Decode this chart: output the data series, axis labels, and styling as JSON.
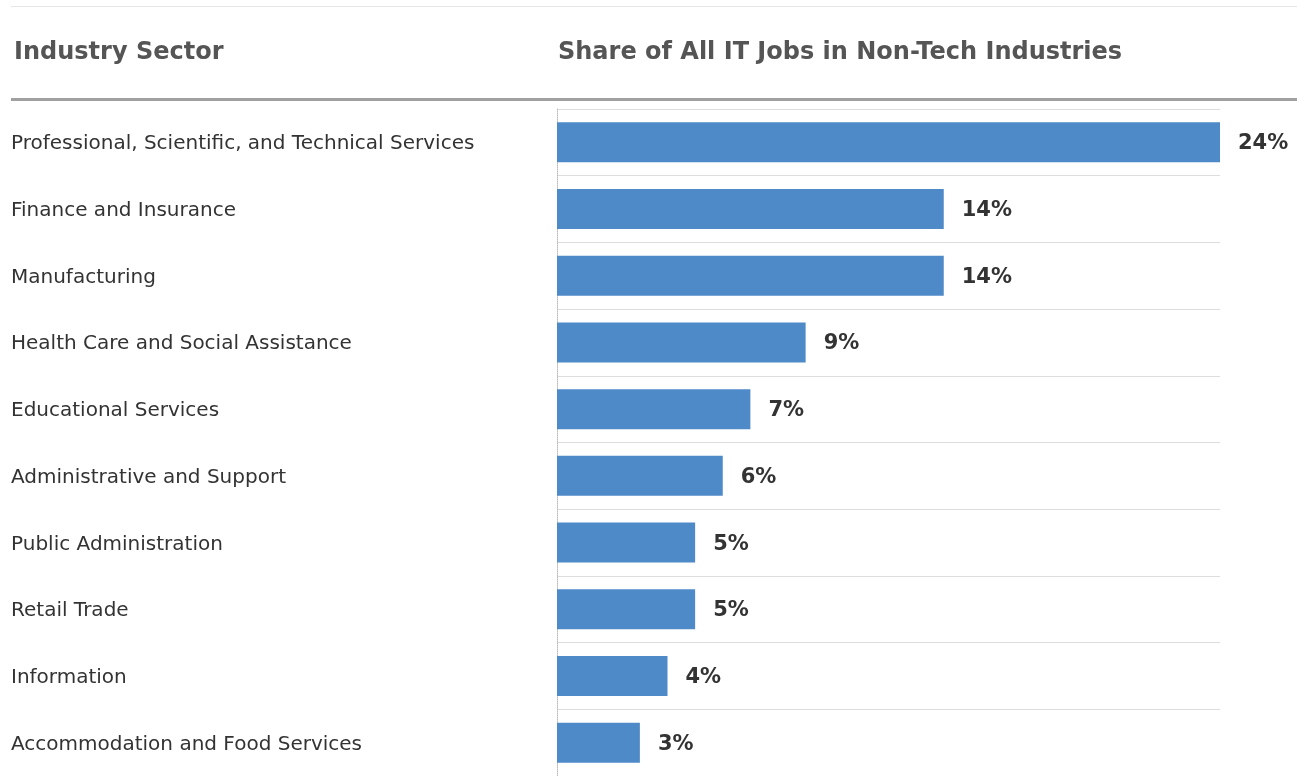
{
  "chart_data": {
    "type": "bar",
    "orientation": "horizontal",
    "ylabel": "Industry Sector",
    "xlabel": "Share of All IT Jobs in Non-Tech Industries",
    "categories": [
      "Professional, Scientific, and Technical Services",
      "Finance and Insurance",
      "Manufacturing",
      "Health Care and Social Assistance",
      "Educational Services",
      "Administrative and Support",
      "Public Administration",
      "Retail Trade",
      "Information",
      "Accommodation and Food Services"
    ],
    "values": [
      24,
      14,
      14,
      9,
      7,
      6,
      5,
      5,
      4,
      3
    ],
    "value_labels": [
      "24%",
      "14%",
      "14%",
      "9%",
      "7%",
      "6%",
      "5%",
      "5%",
      "4%",
      "3%"
    ],
    "color": "#4e8ac8",
    "grid": "y"
  }
}
